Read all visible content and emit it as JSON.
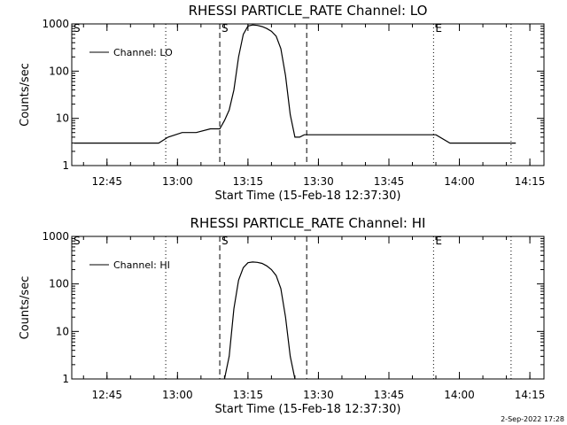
{
  "chart_data": [
    {
      "type": "line",
      "title": "RHESSI PARTICLE_RATE Channel: LO",
      "xlabel": "Start Time (15-Feb-18 12:37:30)",
      "ylabel": "Counts/sec",
      "yscale": "log",
      "ylim": [
        1,
        1000
      ],
      "x_ticks": [
        "12:45",
        "13:00",
        "13:15",
        "13:30",
        "13:45",
        "14:00",
        "14:15"
      ],
      "y_ticks": [
        "1",
        "10",
        "100",
        "1000"
      ],
      "xlim": [
        "12:37:30",
        "14:18:00"
      ],
      "legend": "top-left",
      "markers": [
        {
          "time": "12:37:30",
          "label": "S",
          "style": "dotted"
        },
        {
          "time": "12:57:30",
          "label": "",
          "style": "dotted"
        },
        {
          "time": "13:09:00",
          "label": "S",
          "style": "dashed"
        },
        {
          "time": "13:27:30",
          "label": "",
          "style": "dashed"
        },
        {
          "time": "13:54:30",
          "label": "E",
          "style": "dotted"
        },
        {
          "time": "14:11:00",
          "label": "",
          "style": "dotted"
        }
      ],
      "series": [
        {
          "name": "Channel: LO",
          "x": [
            "12:38:00",
            "12:41:00",
            "12:44:00",
            "12:47:00",
            "12:50:00",
            "12:53:00",
            "12:56:00",
            "12:58:00",
            "13:01:00",
            "13:04:00",
            "13:07:00",
            "13:09:00",
            "13:10:00",
            "13:11:00",
            "13:12:00",
            "13:13:00",
            "13:14:00",
            "13:15:00",
            "13:16:00",
            "13:17:00",
            "13:18:00",
            "13:19:00",
            "13:20:00",
            "13:21:00",
            "13:22:00",
            "13:23:00",
            "13:24:00",
            "13:25:00",
            "13:26:00",
            "13:27:00",
            "13:30:00",
            "13:35:00",
            "13:40:00",
            "13:45:00",
            "13:50:00",
            "13:55:00",
            "13:58:00",
            "14:02:00",
            "14:06:00",
            "14:10:00",
            "14:12:00"
          ],
          "y": [
            3,
            3,
            3,
            3,
            3,
            3,
            3,
            4,
            5,
            5,
            6,
            6,
            9,
            15,
            40,
            200,
            600,
            900,
            950,
            930,
            880,
            800,
            700,
            550,
            300,
            80,
            12,
            4,
            4,
            4.5,
            4.5,
            4.5,
            4.5,
            4.5,
            4.5,
            4.5,
            3,
            3,
            3,
            3,
            3
          ]
        }
      ]
    },
    {
      "type": "line",
      "title": "RHESSI PARTICLE_RATE Channel: HI",
      "xlabel": "Start Time (15-Feb-18 12:37:30)",
      "ylabel": "Counts/sec",
      "yscale": "log",
      "ylim": [
        1,
        1000
      ],
      "x_ticks": [
        "12:45",
        "13:00",
        "13:15",
        "13:30",
        "13:45",
        "14:00",
        "14:15"
      ],
      "y_ticks": [
        "1",
        "10",
        "100",
        "1000"
      ],
      "xlim": [
        "12:37:30",
        "14:18:00"
      ],
      "legend": "top-left",
      "markers": [
        {
          "time": "12:37:30",
          "label": "S",
          "style": "dotted"
        },
        {
          "time": "12:57:30",
          "label": "",
          "style": "dotted"
        },
        {
          "time": "13:09:00",
          "label": "S",
          "style": "dashed"
        },
        {
          "time": "13:27:30",
          "label": "",
          "style": "dashed"
        },
        {
          "time": "13:54:30",
          "label": "E",
          "style": "dotted"
        },
        {
          "time": "14:11:00",
          "label": "",
          "style": "dotted"
        }
      ],
      "series": [
        {
          "name": "Channel: HI",
          "x": [
            "13:10:00",
            "13:11:00",
            "13:12:00",
            "13:13:00",
            "13:14:00",
            "13:15:00",
            "13:16:00",
            "13:17:00",
            "13:18:00",
            "13:19:00",
            "13:20:00",
            "13:21:00",
            "13:22:00",
            "13:23:00",
            "13:24:00",
            "13:25:00"
          ],
          "y": [
            1,
            3,
            30,
            120,
            220,
            280,
            290,
            285,
            270,
            240,
            200,
            150,
            80,
            20,
            3,
            1
          ]
        }
      ]
    }
  ],
  "footer": {
    "timestamp": "2-Sep-2022 17:28"
  }
}
